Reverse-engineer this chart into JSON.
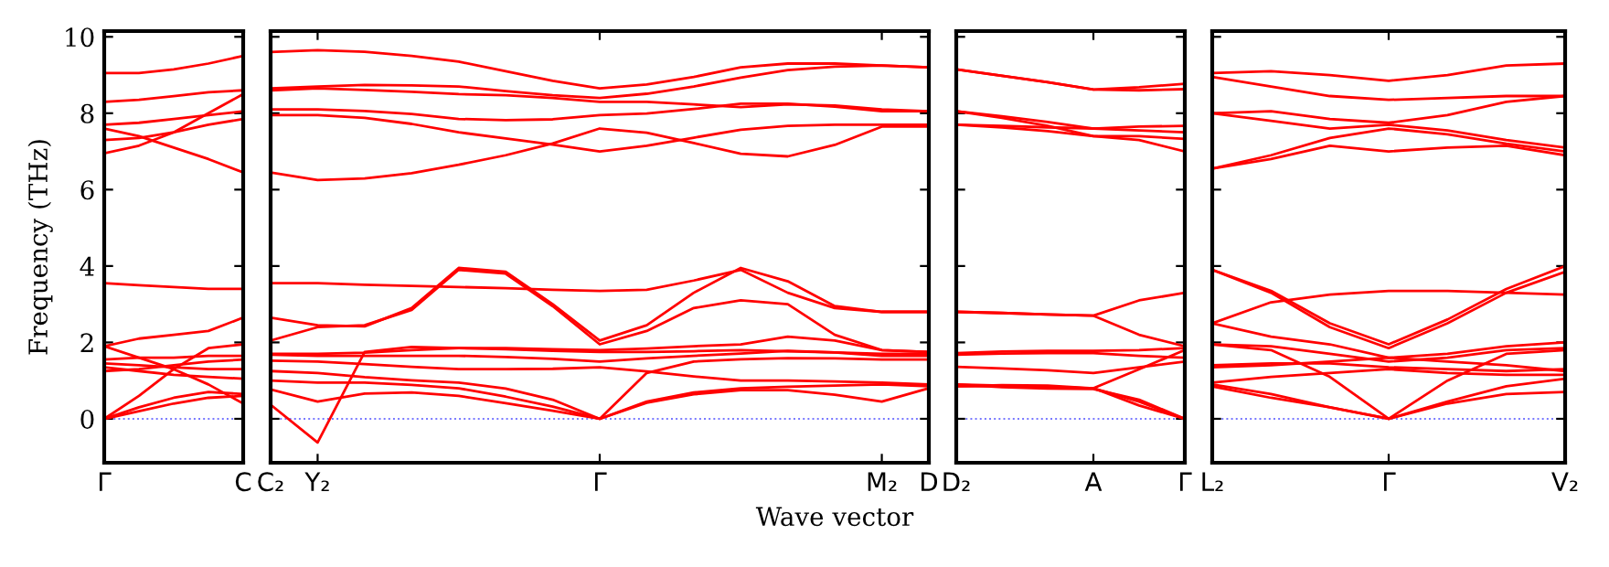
{
  "chart_data": [
    {
      "type": "line",
      "ylabel": "Frequency (THz)",
      "categories": [
        "Γ",
        null,
        null,
        null,
        "C"
      ],
      "ylim": [
        -1.15,
        10.15
      ],
      "yticks": [
        0,
        2,
        4,
        6,
        8,
        10
      ],
      "grid": false,
      "ref_lines": [
        {
          "axis": "y",
          "value": 0,
          "label": null,
          "color": "#7777ff",
          "line_style": "dotted"
        }
      ],
      "series": [
        {
          "color": "#ff0000",
          "values": [
            9.05,
            9.05,
            9.15,
            9.3,
            9.5
          ]
        },
        {
          "color": "#ff0000",
          "values": [
            8.3,
            8.35,
            8.45,
            8.55,
            8.6
          ]
        },
        {
          "color": "#ff0000",
          "values": [
            7.7,
            7.75,
            7.85,
            7.95,
            8.05
          ]
        },
        {
          "color": "#ff0000",
          "values": [
            7.6,
            7.4,
            7.1,
            6.8,
            6.45
          ]
        },
        {
          "color": "#ff0000",
          "values": [
            7.3,
            7.35,
            7.5,
            7.7,
            7.85
          ]
        },
        {
          "color": "#ff0000",
          "values": [
            6.95,
            7.15,
            7.5,
            8.0,
            8.5
          ]
        },
        {
          "color": "#ff0000",
          "values": [
            3.55,
            3.5,
            3.45,
            3.4,
            3.4
          ]
        },
        {
          "color": "#ff0000",
          "values": [
            1.9,
            2.1,
            2.2,
            2.3,
            2.65
          ]
        },
        {
          "color": "#ff0000",
          "values": [
            1.9,
            1.6,
            1.3,
            0.9,
            0.4
          ]
        },
        {
          "color": "#ff0000",
          "values": [
            0,
            0.6,
            1.3,
            1.85,
            1.95
          ]
        },
        {
          "color": "#ff0000",
          "values": [
            0,
            0.3,
            0.55,
            0.7,
            0.65
          ]
        },
        {
          "color": "#ff0000",
          "values": [
            0,
            0.2,
            0.4,
            0.55,
            0.6
          ]
        },
        {
          "color": "#ff0000",
          "values": [
            1.55,
            1.6,
            1.6,
            1.65,
            1.65
          ]
        },
        {
          "color": "#ff0000",
          "values": [
            1.45,
            1.4,
            1.35,
            1.3,
            1.3
          ]
        },
        {
          "color": "#ff0000",
          "values": [
            1.35,
            1.25,
            1.15,
            1.1,
            1.05
          ]
        },
        {
          "color": "#ff0000",
          "values": [
            1.25,
            1.3,
            1.4,
            1.5,
            1.55
          ]
        }
      ]
    },
    {
      "type": "line",
      "xlabel": "Wave vector",
      "categories": [
        "C₂",
        "Y₂",
        null,
        null,
        null,
        null,
        null,
        "Γ",
        null,
        null,
        null,
        null,
        null,
        "M₂",
        "D"
      ],
      "ylim": [
        -1.15,
        10.15
      ],
      "yticks": [
        0,
        2,
        4,
        6,
        8,
        10
      ],
      "tick_labels": "x",
      "grid": false,
      "ref_lines": [
        {
          "axis": "y",
          "value": 0,
          "label": null,
          "color": "#7777ff",
          "line_style": "dotted"
        }
      ],
      "series": [
        {
          "color": "#ff0000",
          "values": [
            9.6,
            9.65,
            9.61,
            9.5,
            9.35,
            9.1,
            8.85,
            8.65,
            8.75,
            8.95,
            9.2,
            9.3,
            9.3,
            9.25,
            9.2
          ]
        },
        {
          "color": "#ff0000",
          "values": [
            8.65,
            8.7,
            8.74,
            8.73,
            8.7,
            8.58,
            8.47,
            8.4,
            8.51,
            8.7,
            8.93,
            9.13,
            9.22,
            9.25,
            9.2
          ]
        },
        {
          "color": "#ff0000",
          "values": [
            8.6,
            8.65,
            8.61,
            8.56,
            8.5,
            8.47,
            8.4,
            8.3,
            8.3,
            8.23,
            8.16,
            8.23,
            8.2,
            8.1,
            8.05
          ]
        },
        {
          "color": "#ff0000",
          "values": [
            8.1,
            8.1,
            8.06,
            7.98,
            7.85,
            7.82,
            7.84,
            7.95,
            7.99,
            8.11,
            8.25,
            8.25,
            8.17,
            8.05,
            8.05
          ]
        },
        {
          "color": "#ff0000",
          "values": [
            7.95,
            7.95,
            7.88,
            7.72,
            7.5,
            7.34,
            7.18,
            7.0,
            7.15,
            7.36,
            7.57,
            7.67,
            7.7,
            7.7,
            7.7
          ]
        },
        {
          "color": "#ff0000",
          "values": [
            6.45,
            6.25,
            6.29,
            6.43,
            6.65,
            6.9,
            7.21,
            7.6,
            7.49,
            7.22,
            6.94,
            6.87,
            7.17,
            7.65,
            7.65
          ]
        },
        {
          "color": "#ff0000",
          "values": [
            3.55,
            3.55,
            3.51,
            3.48,
            3.45,
            3.42,
            3.38,
            3.35,
            3.38,
            3.62,
            3.9,
            3.3,
            2.9,
            2.8,
            2.8
          ]
        },
        {
          "color": "#ff0000",
          "values": [
            2.65,
            2.45,
            2.42,
            2.9,
            3.95,
            3.85,
            3.0,
            2.05,
            2.45,
            3.3,
            3.95,
            3.6,
            2.95,
            2.8,
            2.8
          ]
        },
        {
          "color": "#ff0000",
          "values": [
            2.05,
            2.4,
            2.45,
            2.85,
            3.9,
            3.8,
            2.95,
            1.95,
            2.3,
            2.9,
            3.1,
            3.0,
            2.2,
            1.8,
            1.75
          ]
        },
        {
          "color": "#ff0000",
          "values": [
            1.7,
            1.7,
            1.73,
            1.8,
            1.85,
            1.85,
            1.82,
            1.8,
            1.84,
            1.9,
            1.95,
            2.15,
            2.05,
            1.8,
            1.75
          ]
        },
        {
          "color": "#ff0000",
          "values": [
            0.37,
            -0.62,
            1.75,
            1.88,
            1.85,
            1.82,
            1.78,
            1.75,
            1.75,
            1.77,
            1.8,
            1.77,
            1.74,
            1.7,
            1.7
          ]
        },
        {
          "color": "#ff0000",
          "values": [
            0.77,
            0.45,
            0.66,
            0.69,
            0.6,
            0.41,
            0.21,
            0.0,
            0.42,
            0.64,
            0.75,
            0.75,
            0.63,
            0.45,
            0.8
          ]
        },
        {
          "color": "#ff0000",
          "values": [
            1.0,
            0.95,
            0.95,
            0.89,
            0.8,
            0.58,
            0.32,
            0.0,
            0.45,
            0.69,
            0.8,
            0.84,
            0.87,
            0.9,
            0.85
          ]
        },
        {
          "color": "#ff0000",
          "values": [
            1.25,
            1.2,
            1.09,
            1.01,
            0.95,
            0.79,
            0.5,
            0.0,
            1.2,
            1.5,
            1.56,
            1.59,
            1.58,
            1.55,
            1.55
          ]
        },
        {
          "color": "#ff0000",
          "values": [
            1.52,
            1.5,
            1.43,
            1.36,
            1.3,
            1.3,
            1.31,
            1.35,
            1.24,
            1.11,
            1.0,
            1.0,
            0.98,
            0.95,
            0.9
          ]
        },
        {
          "color": "#ff0000",
          "values": [
            1.68,
            1.65,
            1.65,
            1.65,
            1.65,
            1.62,
            1.57,
            1.5,
            1.58,
            1.65,
            1.71,
            1.78,
            1.74,
            1.65,
            1.65
          ]
        }
      ]
    },
    {
      "type": "line",
      "categories": [
        "D₂",
        null,
        null,
        "A",
        null,
        "Γ"
      ],
      "ylim": [
        -1.15,
        10.15
      ],
      "yticks": [
        0,
        2,
        4,
        6,
        8,
        10
      ],
      "tick_labels": "x",
      "grid": false,
      "ref_lines": [
        {
          "axis": "y",
          "value": 0,
          "label": null,
          "color": "#7777ff",
          "line_style": "dotted"
        }
      ],
      "series": [
        {
          "color": "#ff0000",
          "values": [
            9.15,
            8.98,
            8.81,
            8.62,
            8.68,
            8.77
          ]
        },
        {
          "color": "#ff0000",
          "values": [
            9.15,
            8.98,
            8.81,
            8.62,
            8.6,
            8.63
          ]
        },
        {
          "color": "#ff0000",
          "values": [
            8.05,
            7.92,
            7.77,
            7.6,
            7.65,
            7.67
          ]
        },
        {
          "color": "#ff0000",
          "values": [
            8.05,
            7.88,
            7.67,
            7.4,
            7.3,
            7.0
          ]
        },
        {
          "color": "#ff0000",
          "values": [
            7.7,
            7.67,
            7.63,
            7.6,
            7.55,
            7.5
          ]
        },
        {
          "color": "#ff0000",
          "values": [
            7.7,
            7.63,
            7.53,
            7.4,
            7.4,
            7.33
          ]
        },
        {
          "color": "#ff0000",
          "values": [
            2.8,
            2.77,
            2.73,
            2.7,
            3.1,
            3.3
          ]
        },
        {
          "color": "#ff0000",
          "values": [
            2.8,
            2.77,
            2.73,
            2.7,
            2.2,
            1.9
          ]
        },
        {
          "color": "#ff0000",
          "values": [
            1.72,
            1.76,
            1.78,
            1.78,
            1.8,
            1.85
          ]
        },
        {
          "color": "#ff0000",
          "values": [
            1.68,
            1.71,
            1.72,
            1.72,
            1.65,
            1.6
          ]
        },
        {
          "color": "#ff0000",
          "values": [
            1.36,
            1.32,
            1.27,
            1.2,
            1.35,
            1.5
          ]
        },
        {
          "color": "#ff0000",
          "values": [
            0.85,
            0.88,
            0.87,
            0.8,
            1.3,
            1.8
          ]
        },
        {
          "color": "#ff0000",
          "values": [
            0.85,
            0.85,
            0.83,
            0.8,
            0.35,
            0.0
          ]
        },
        {
          "color": "#ff0000",
          "values": [
            0.9,
            0.87,
            0.83,
            0.8,
            0.45,
            0.0
          ]
        },
        {
          "color": "#ff0000",
          "values": [
            0.9,
            0.83,
            0.79,
            0.78,
            0.5,
            0.0
          ]
        }
      ]
    },
    {
      "type": "line",
      "categories": [
        "L₂",
        null,
        null,
        "Γ",
        null,
        null,
        "V₂"
      ],
      "ylim": [
        -1.15,
        10.15
      ],
      "yticks": [
        0,
        2,
        4,
        6,
        8,
        10
      ],
      "tick_labels": "x",
      "grid": false,
      "ref_lines": [
        {
          "axis": "y",
          "value": 0,
          "label": null,
          "color": "#7777ff",
          "line_style": "dotted"
        }
      ],
      "series": [
        {
          "color": "#ff0000",
          "values": [
            9.05,
            9.1,
            9.0,
            8.85,
            9.0,
            9.25,
            9.3
          ]
        },
        {
          "color": "#ff0000",
          "values": [
            8.95,
            8.7,
            8.45,
            8.35,
            8.4,
            8.45,
            8.45
          ]
        },
        {
          "color": "#ff0000",
          "values": [
            8.0,
            8.05,
            7.85,
            7.75,
            7.95,
            8.3,
            8.45
          ]
        },
        {
          "color": "#ff0000",
          "values": [
            8.0,
            7.8,
            7.6,
            7.7,
            7.55,
            7.3,
            7.1
          ]
        },
        {
          "color": "#ff0000",
          "values": [
            6.55,
            6.9,
            7.35,
            7.6,
            7.45,
            7.2,
            7.0
          ]
        },
        {
          "color": "#ff0000",
          "values": [
            6.55,
            6.8,
            7.15,
            7.0,
            7.1,
            7.15,
            6.9
          ]
        },
        {
          "color": "#ff0000",
          "values": [
            3.9,
            3.35,
            2.5,
            1.95,
            2.6,
            3.4,
            4.0
          ]
        },
        {
          "color": "#ff0000",
          "values": [
            3.9,
            3.3,
            2.4,
            1.85,
            2.5,
            3.3,
            3.85
          ]
        },
        {
          "color": "#ff0000",
          "values": [
            2.5,
            3.05,
            3.25,
            3.35,
            3.35,
            3.3,
            3.25
          ]
        },
        {
          "color": "#ff0000",
          "values": [
            2.5,
            2.15,
            1.95,
            1.6,
            1.7,
            1.9,
            2.0
          ]
        },
        {
          "color": "#ff0000",
          "values": [
            1.95,
            1.9,
            1.7,
            1.5,
            1.6,
            1.8,
            1.85
          ]
        },
        {
          "color": "#ff0000",
          "values": [
            1.95,
            1.8,
            1.1,
            0.0,
            1.0,
            1.7,
            1.8
          ]
        },
        {
          "color": "#ff0000",
          "values": [
            1.4,
            1.45,
            1.45,
            1.35,
            1.3,
            1.25,
            1.3
          ]
        },
        {
          "color": "#ff0000",
          "values": [
            1.35,
            1.4,
            1.5,
            1.6,
            1.5,
            1.4,
            1.25
          ]
        },
        {
          "color": "#ff0000",
          "values": [
            0.95,
            1.1,
            1.2,
            1.3,
            1.2,
            1.15,
            1.15
          ]
        },
        {
          "color": "#ff0000",
          "values": [
            0.9,
            0.65,
            0.3,
            0.0,
            0.4,
            0.65,
            0.7
          ]
        },
        {
          "color": "#ff0000",
          "values": [
            0.85,
            0.55,
            0.3,
            0.0,
            0.45,
            0.85,
            1.05
          ]
        }
      ]
    }
  ]
}
